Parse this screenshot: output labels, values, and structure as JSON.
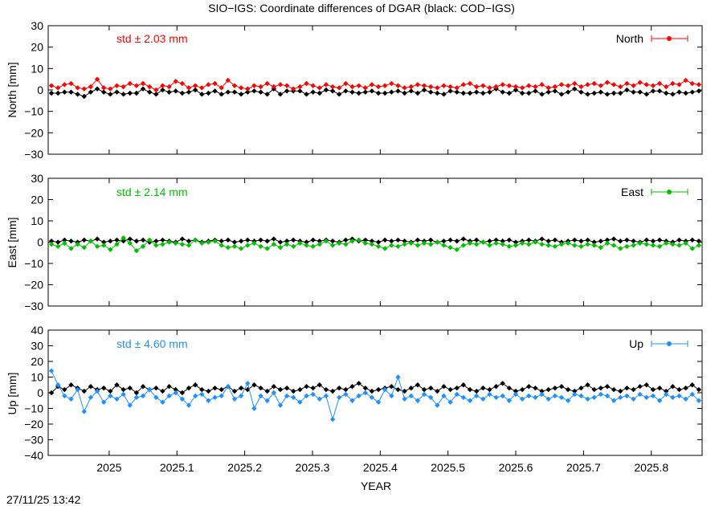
{
  "title": "SIO−IGS: Coordinate differences of DGAR (black: COD−IGS)",
  "xlabel": "YEAR",
  "timestamp": "27/11/25 13:42",
  "colors": {
    "black_series": "#000000",
    "north": "#ff0000",
    "east": "#00c000",
    "up": "#1e90ff"
  },
  "chart_data": [
    {
      "type": "scatter",
      "panel": "north",
      "ylabel": "North [mm]",
      "legend": "North",
      "std_label": "std ± 2.03 mm",
      "ylim": [
        -30,
        30
      ],
      "yticks": [
        -30,
        -20,
        -10,
        0,
        10,
        20,
        30
      ],
      "ytick_labels": [
        "−30",
        "−20",
        "−10",
        "0",
        "10",
        "20",
        "30"
      ],
      "xlim": [
        2024.91,
        2025.875
      ],
      "xticks": [
        2025,
        2025.1,
        2025.2,
        2025.3,
        2025.4,
        2025.5,
        2025.6,
        2025.7,
        2025.8
      ],
      "xtick_labels": [
        "2025",
        "2025.1",
        "2025.2",
        "2025.3",
        "2025.4",
        "2025.5",
        "2025.6",
        "2025.7",
        "2025.8"
      ],
      "series": [
        {
          "values": [
            -1.5,
            -1.5,
            -1.0,
            -1.0,
            -2.0,
            -3.0,
            -1.0,
            0.5,
            -1.0,
            -2.0,
            -1.0,
            -2.0,
            -1.5,
            -1.5,
            0.5,
            -1.0,
            -2.0,
            0.0,
            -1.0,
            -0.5,
            -1.5,
            -1.0,
            0.0,
            -2.0,
            -1.5,
            -0.5,
            -2.0,
            -1.0,
            -1.0,
            -2.0,
            -1.0,
            -0.5,
            -1.0,
            -2.0,
            0.5,
            -2.0,
            -0.5,
            -0.5,
            -0.5,
            -2.0,
            -1.0,
            -1.5,
            0.0,
            -0.5,
            -2.0,
            -0.5,
            -1.0,
            -1.5,
            -1.0,
            -0.5,
            -1.5,
            -1.5,
            -1.0,
            -0.5,
            -1.5,
            -0.5,
            -1.5,
            0.0,
            -1.0,
            -1.5,
            -2.0,
            -0.5,
            -1.0,
            -1.5,
            -1.5,
            -1.0,
            -1.5,
            -1.0,
            0.5,
            -1.0,
            -1.5,
            0.0,
            -1.5,
            -1.5,
            -0.5,
            -2.0,
            -1.0,
            -0.5,
            -2.0,
            -1.0,
            0.5,
            -1.0,
            -2.0,
            -1.5,
            -1.0,
            -2.0,
            -1.5,
            -1.5,
            0.0,
            -1.0,
            -1.0,
            -2.0,
            -0.5,
            -0.5,
            -1.5,
            -2.0,
            -1.0,
            -1.5,
            -1.0,
            -0.5
          ]
        },
        {
          "values": [
            2.0,
            1.0,
            2.5,
            3.0,
            1.0,
            0.5,
            1.5,
            5.0,
            1.0,
            0.5,
            2.0,
            1.5,
            3.0,
            2.0,
            3.0,
            1.5,
            0.0,
            2.0,
            1.5,
            4.0,
            3.0,
            1.0,
            2.0,
            1.0,
            2.5,
            3.0,
            1.0,
            4.5,
            2.0,
            1.0,
            0.5,
            2.0,
            1.5,
            3.0,
            1.5,
            2.5,
            2.0,
            0.5,
            1.5,
            3.0,
            2.0,
            1.0,
            2.5,
            1.5,
            1.0,
            3.0,
            1.5,
            2.0,
            1.0,
            2.5,
            1.5,
            2.0,
            3.0,
            2.0,
            1.0,
            1.5,
            2.5,
            2.0,
            1.5,
            1.0,
            2.0,
            1.5,
            1.0,
            2.5,
            3.0,
            1.5,
            2.0,
            1.0,
            1.5,
            2.5,
            2.0,
            1.5,
            1.0,
            2.0,
            1.5,
            2.5,
            1.0,
            1.5,
            2.5,
            2.0,
            3.0,
            1.5,
            2.5,
            3.0,
            2.0,
            3.5,
            2.5,
            1.5,
            3.0,
            2.0,
            3.5,
            2.5,
            2.0,
            3.0,
            1.5,
            3.0,
            2.5,
            4.5,
            3.0,
            2.5
          ]
        }
      ]
    },
    {
      "type": "scatter",
      "panel": "east",
      "ylabel": "East [mm]",
      "legend": "East",
      "std_label": "std ± 2.14 mm",
      "ylim": [
        -30,
        30
      ],
      "yticks": [
        -30,
        -20,
        -10,
        0,
        10,
        20,
        30
      ],
      "ytick_labels": [
        "−30",
        "−20",
        "−10",
        "0",
        "10",
        "20",
        "30"
      ],
      "xlim": [
        2024.91,
        2025.875
      ],
      "xticks": [
        2025,
        2025.1,
        2025.2,
        2025.3,
        2025.4,
        2025.5,
        2025.6,
        2025.7,
        2025.8
      ],
      "xtick_labels": [
        "2025",
        "2025.1",
        "2025.2",
        "2025.3",
        "2025.4",
        "2025.5",
        "2025.6",
        "2025.7",
        "2025.8"
      ],
      "series": [
        {
          "values": [
            0.5,
            0.0,
            1.0,
            0.5,
            0.0,
            1.0,
            0.5,
            1.5,
            0.0,
            0.5,
            1.0,
            0.5,
            1.5,
            0.5,
            1.0,
            0.0,
            0.5,
            1.0,
            0.5,
            0.0,
            1.5,
            0.5,
            1.0,
            0.0,
            0.5,
            1.0,
            0.5,
            1.0,
            0.0,
            0.5,
            1.0,
            0.5,
            1.0,
            0.5,
            1.5,
            0.0,
            0.5,
            1.0,
            0.5,
            0.0,
            1.0,
            0.5,
            1.0,
            0.5,
            0.0,
            1.0,
            1.5,
            0.5,
            1.0,
            0.5,
            0.0,
            1.0,
            0.5,
            1.0,
            0.5,
            0.0,
            1.0,
            0.5,
            1.0,
            0.0,
            0.5,
            1.0,
            0.5,
            1.5,
            0.5,
            1.0,
            0.0,
            0.5,
            1.0,
            0.5,
            1.0,
            0.0,
            0.5,
            1.0,
            0.5,
            1.5,
            0.5,
            1.0,
            0.0,
            0.5,
            1.0,
            0.5,
            1.0,
            0.0,
            0.5,
            1.0,
            1.5,
            0.5,
            1.0,
            0.5,
            0.0,
            1.0,
            0.5,
            1.0,
            0.5,
            0.0,
            1.0,
            0.5,
            1.0,
            0.5
          ]
        },
        {
          "values": [
            -1.0,
            -2.0,
            -0.5,
            -3.0,
            -1.0,
            -2.5,
            0.5,
            -2.0,
            -1.5,
            -3.5,
            -1.0,
            2.0,
            -0.5,
            -4.0,
            -2.0,
            1.0,
            -1.5,
            -1.0,
            0.0,
            -0.5,
            -1.0,
            -1.5,
            1.0,
            -0.5,
            0.0,
            0.5,
            -1.5,
            -2.5,
            -2.0,
            -3.0,
            -1.5,
            -0.5,
            -2.0,
            -3.0,
            -1.0,
            -2.5,
            -1.0,
            -2.0,
            -0.5,
            -1.5,
            -2.0,
            -1.0,
            0.5,
            -1.5,
            -0.5,
            -1.0,
            0.5,
            1.0,
            -0.5,
            -1.0,
            -2.0,
            -3.0,
            -1.5,
            -2.0,
            -1.0,
            -0.5,
            -1.5,
            -0.5,
            -1.0,
            0.0,
            -1.5,
            -2.5,
            -3.5,
            -1.5,
            -0.5,
            -1.0,
            0.0,
            -1.5,
            -0.5,
            -1.0,
            -2.0,
            -1.5,
            -0.5,
            -1.0,
            0.0,
            -1.0,
            -1.5,
            -2.0,
            -1.0,
            -0.5,
            -1.5,
            -2.0,
            -1.0,
            -1.5,
            -2.5,
            -0.5,
            -1.5,
            -3.0,
            -2.0,
            -1.5,
            -0.5,
            -1.0,
            -1.5,
            -2.0,
            -0.5,
            -1.0,
            -1.5,
            -0.5,
            -3.0,
            -1.5
          ]
        }
      ]
    },
    {
      "type": "scatter",
      "panel": "up",
      "ylabel": "Up [mm]",
      "legend": "Up",
      "std_label": "std ± 4.60 mm",
      "ylim": [
        -40,
        40
      ],
      "yticks": [
        -40,
        -30,
        -20,
        -10,
        0,
        10,
        20,
        30,
        40
      ],
      "ytick_labels": [
        "−40",
        "−30",
        "−20",
        "−10",
        "0",
        "10",
        "20",
        "30",
        "40"
      ],
      "xlim": [
        2024.91,
        2025.875
      ],
      "xticks": [
        2025,
        2025.1,
        2025.2,
        2025.3,
        2025.4,
        2025.5,
        2025.6,
        2025.7,
        2025.8
      ],
      "xtick_labels": [
        "2025",
        "2025.1",
        "2025.2",
        "2025.3",
        "2025.4",
        "2025.5",
        "2025.6",
        "2025.7",
        "2025.8"
      ],
      "series": [
        {
          "values": [
            0.0,
            4.0,
            2.0,
            5.0,
            3.0,
            1.0,
            4.0,
            2.0,
            3.0,
            1.0,
            5.0,
            2.0,
            3.0,
            0.0,
            4.0,
            2.0,
            3.0,
            1.0,
            4.0,
            2.0,
            0.0,
            3.0,
            5.0,
            2.0,
            1.0,
            3.0,
            2.0,
            4.0,
            1.0,
            3.0,
            2.0,
            5.0,
            3.0,
            1.0,
            4.0,
            2.0,
            3.0,
            1.0,
            2.0,
            4.0,
            3.0,
            5.0,
            2.0,
            1.0,
            3.0,
            2.0,
            4.0,
            6.0,
            3.0,
            1.0,
            2.0,
            3.0,
            4.0,
            2.0,
            1.0,
            3.0,
            5.0,
            2.0,
            3.0,
            1.0,
            4.0,
            2.0,
            3.0,
            5.0,
            2.0,
            1.0,
            3.0,
            2.0,
            4.0,
            6.0,
            3.0,
            1.0,
            2.0,
            4.0,
            3.0,
            1.0,
            2.0,
            3.0,
            4.0,
            2.0,
            1.0,
            3.0,
            5.0,
            2.0,
            3.0,
            4.0,
            2.0,
            1.0,
            3.0,
            2.0,
            4.0,
            5.0,
            2.0,
            3.0,
            1.0,
            4.0,
            2.0,
            3.0,
            5.0,
            2.0
          ]
        },
        {
          "values": [
            14.0,
            5.0,
            -2.0,
            -4.0,
            2.0,
            -12.0,
            -3.0,
            1.0,
            -6.0,
            -2.0,
            -4.0,
            -1.0,
            -8.0,
            -3.0,
            -2.0,
            2.0,
            -3.0,
            -6.0,
            -2.0,
            0.0,
            -4.0,
            -8.0,
            -2.0,
            -1.0,
            -5.0,
            -3.0,
            -2.0,
            4.0,
            -4.0,
            -2.0,
            6.0,
            -10.0,
            -2.0,
            -5.0,
            0.0,
            -8.0,
            -2.0,
            -3.0,
            -6.0,
            -2.0,
            -1.0,
            -4.0,
            -2.0,
            -17.0,
            -3.0,
            -1.0,
            -5.0,
            -2.0,
            0.0,
            -3.0,
            -6.0,
            2.0,
            -2.0,
            10.0,
            -4.0,
            -2.0,
            -5.0,
            -1.0,
            -3.0,
            -8.0,
            -2.0,
            -6.0,
            -1.0,
            -3.0,
            -5.0,
            -2.0,
            -4.0,
            -1.0,
            -3.0,
            -2.0,
            -5.0,
            -1.0,
            -4.0,
            -2.0,
            -3.0,
            -1.0,
            -4.0,
            -2.0,
            -3.0,
            -5.0,
            -1.0,
            -2.0,
            -4.0,
            -3.0,
            -1.0,
            -2.0,
            -5.0,
            -3.0,
            -2.0,
            -4.0,
            -1.0,
            -3.0,
            -2.0,
            -5.0,
            -1.0,
            -3.0,
            -2.0,
            -4.0,
            -1.0,
            -5.0
          ]
        }
      ]
    }
  ]
}
